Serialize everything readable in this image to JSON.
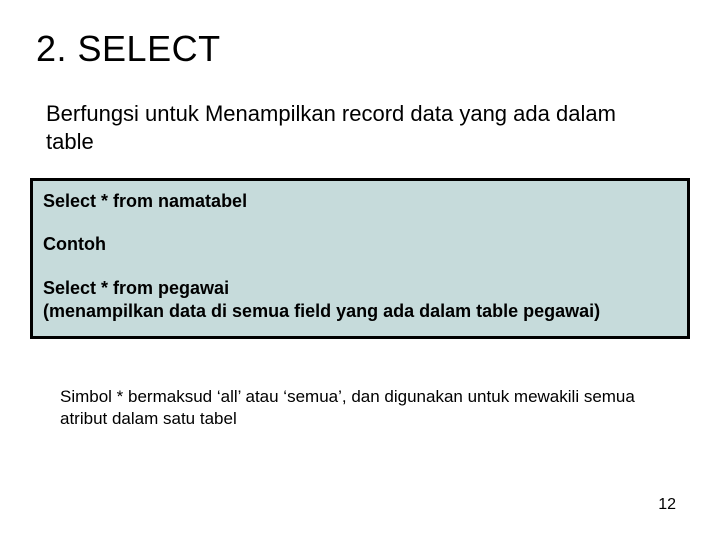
{
  "heading": "2.  SELECT",
  "intro": "Berfungsi untuk Menampilkan record data yang ada dalam table",
  "codebox": {
    "bg_color": "#c6dbdb",
    "border_color": "#000000",
    "line1": "Select * from namatabel",
    "line2": "Contoh",
    "line3": "Select * from pegawai\n(menampilkan data di semua field yang ada dalam table pegawai)"
  },
  "note": "Simbol * bermaksud ‘all’ atau ‘semua’, dan digunakan untuk mewakili semua atribut dalam satu tabel",
  "page_number": "12",
  "colors": {
    "background": "#ffffff",
    "text": "#000000"
  },
  "fontsizes": {
    "heading": 36,
    "intro": 22,
    "code": 18,
    "note": 17,
    "pagenum": 16
  }
}
